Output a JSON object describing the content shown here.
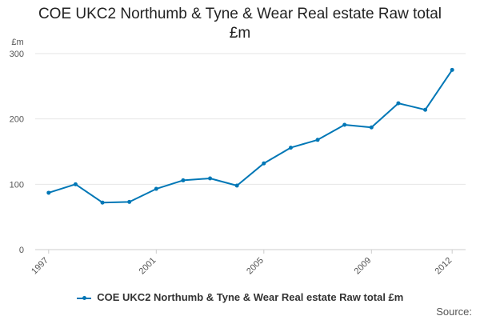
{
  "chart_data": {
    "type": "line",
    "title_lines": [
      "COE UKC2 Northumb & Tyne & Wear Real estate Raw total",
      "£m"
    ],
    "ylabel": "£m",
    "ylim": [
      0,
      300
    ],
    "yticks": [
      "0",
      "100",
      "200",
      "300"
    ],
    "xtick_labels": [
      "1997",
      "2001",
      "2005",
      "2009",
      "2012"
    ],
    "grid": true,
    "legend_position": "bottom",
    "series": [
      {
        "name": "COE UKC2 Northumb & Tyne & Wear Real estate Raw total £m",
        "color": "#0077b6",
        "x": [
          1997,
          1998,
          1999,
          2000,
          2001,
          2002,
          2003,
          2004,
          2005,
          2006,
          2007,
          2008,
          2009,
          2010,
          2011,
          2012
        ],
        "values": [
          87,
          100,
          72,
          73,
          93,
          106,
          109,
          98,
          132,
          156,
          168,
          191,
          187,
          224,
          214,
          275
        ]
      }
    ]
  },
  "source_label": "Source:"
}
